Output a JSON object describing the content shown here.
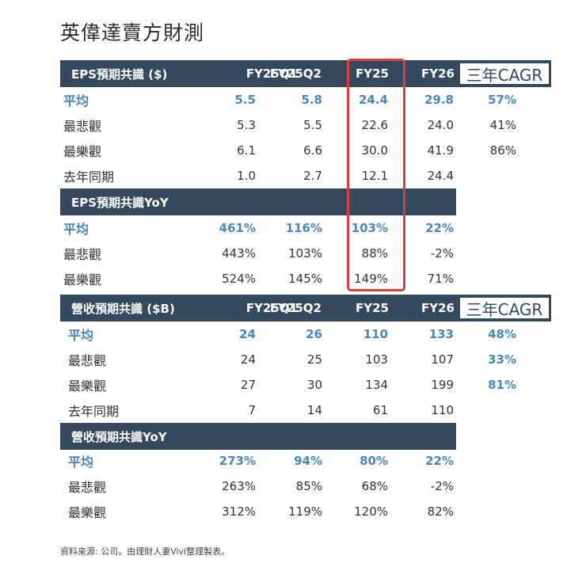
{
  "title": "英偉達賣方財測",
  "eps": {
    "header": "EPS預期共識 ($)",
    "cols": [
      "FY25Q1",
      "FY25Q2",
      "FY25",
      "FY26"
    ],
    "cagr_label": "三年CAGR",
    "rows": [
      {
        "label": "平均",
        "values": [
          "5.5",
          "5.8",
          "24.4",
          "29.8"
        ],
        "cagr": "57%"
      },
      {
        "label": "最悲觀",
        "values": [
          "5.3",
          "5.5",
          "22.6",
          "24.0"
        ],
        "cagr": "41%"
      },
      {
        "label": "最樂觀",
        "values": [
          "6.1",
          "6.6",
          "30.0",
          "41.9"
        ],
        "cagr": "86%"
      },
      {
        "label": "去年同期",
        "values": [
          "1.0",
          "2.7",
          "12.1",
          "24.4"
        ],
        "cagr": ""
      }
    ]
  },
  "eps_yoy": {
    "header": "EPS預期共識YoY",
    "rows": [
      {
        "label": "平均",
        "values": [
          "461%",
          "116%",
          "103%",
          "22%"
        ]
      },
      {
        "label": "最悲觀",
        "values": [
          "443%",
          "103%",
          "88%",
          "-2%"
        ]
      },
      {
        "label": "最樂觀",
        "values": [
          "524%",
          "145%",
          "149%",
          "71%"
        ]
      }
    ]
  },
  "rev": {
    "header": "營收預期共識 ($B)",
    "cols": [
      "FY25Q1",
      "FY25Q2",
      "FY25",
      "FY26"
    ],
    "cagr_label": "三年CAGR",
    "rows": [
      {
        "label": "平均",
        "values": [
          "24",
          "26",
          "110",
          "133"
        ],
        "cagr": "48%"
      },
      {
        "label": "最悲觀",
        "values": [
          "24",
          "25",
          "103",
          "107"
        ],
        "cagr": "33%"
      },
      {
        "label": "最樂觀",
        "values": [
          "27",
          "30",
          "134",
          "199"
        ],
        "cagr": "81%"
      },
      {
        "label": "去年同期",
        "values": [
          "7",
          "14",
          "61",
          "110"
        ],
        "cagr": ""
      }
    ]
  },
  "rev_yoy": {
    "header": "營收預期共識YoY",
    "rows": [
      {
        "label": "平均",
        "values": [
          "273%",
          "94%",
          "80%",
          "22%"
        ]
      },
      {
        "label": "最悲觀",
        "values": [
          "263%",
          "85%",
          "68%",
          "-2%"
        ]
      },
      {
        "label": "最樂觀",
        "values": [
          "312%",
          "119%",
          "120%",
          "82%"
        ]
      }
    ]
  },
  "footer": "資料來源: 公司。由理財人妻Vivi整理製表。",
  "colors": {
    "header_bg": "#34495e",
    "accent_blue": "#4a86b8",
    "highlight_red": "#e23b3b"
  }
}
